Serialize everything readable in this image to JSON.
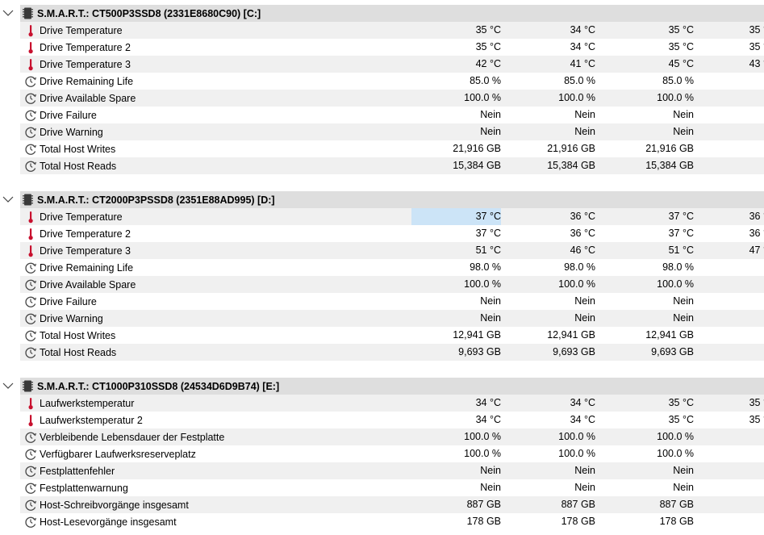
{
  "sections": [
    {
      "title": "S.M.A.R.T.: CT500P3SSD8 (2331E8680C90) [C:]",
      "rows": [
        {
          "icon": "thermometer-icon",
          "label": "Drive Temperature",
          "cur": "35 °C",
          "min": "34 °C",
          "max": "35 °C",
          "avg": "35 °C"
        },
        {
          "icon": "thermometer-icon",
          "label": "Drive Temperature 2",
          "cur": "35 °C",
          "min": "34 °C",
          "max": "35 °C",
          "avg": "35 °C"
        },
        {
          "icon": "thermometer-icon",
          "label": "Drive Temperature 3",
          "cur": "42 °C",
          "min": "41 °C",
          "max": "45 °C",
          "avg": "43 °C"
        },
        {
          "icon": "gauge-icon",
          "label": "Drive Remaining Life",
          "cur": "85.0 %",
          "min": "85.0 %",
          "max": "85.0 %",
          "avg": ""
        },
        {
          "icon": "gauge-icon",
          "label": "Drive Available Spare",
          "cur": "100.0 %",
          "min": "100.0 %",
          "max": "100.0 %",
          "avg": ""
        },
        {
          "icon": "gauge-icon",
          "label": "Drive Failure",
          "cur": "Nein",
          "min": "Nein",
          "max": "Nein",
          "avg": ""
        },
        {
          "icon": "gauge-icon",
          "label": "Drive Warning",
          "cur": "Nein",
          "min": "Nein",
          "max": "Nein",
          "avg": ""
        },
        {
          "icon": "gauge-icon",
          "label": "Total Host Writes",
          "cur": "21,916 GB",
          "min": "21,916 GB",
          "max": "21,916 GB",
          "avg": ""
        },
        {
          "icon": "gauge-icon",
          "label": "Total Host Reads",
          "cur": "15,384 GB",
          "min": "15,384 GB",
          "max": "15,384 GB",
          "avg": ""
        }
      ]
    },
    {
      "title": "S.M.A.R.T.: CT2000P3PSSD8 (2351E88AD995) [D:]",
      "rows": [
        {
          "icon": "thermometer-icon",
          "label": "Drive Temperature",
          "cur": "37 °C",
          "min": "36 °C",
          "max": "37 °C",
          "avg": "36 °C",
          "selected": true
        },
        {
          "icon": "thermometer-icon",
          "label": "Drive Temperature 2",
          "cur": "37 °C",
          "min": "36 °C",
          "max": "37 °C",
          "avg": "36 °C"
        },
        {
          "icon": "thermometer-icon",
          "label": "Drive Temperature 3",
          "cur": "51 °C",
          "min": "46 °C",
          "max": "51 °C",
          "avg": "47 °C"
        },
        {
          "icon": "gauge-icon",
          "label": "Drive Remaining Life",
          "cur": "98.0 %",
          "min": "98.0 %",
          "max": "98.0 %",
          "avg": ""
        },
        {
          "icon": "gauge-icon",
          "label": "Drive Available Spare",
          "cur": "100.0 %",
          "min": "100.0 %",
          "max": "100.0 %",
          "avg": ""
        },
        {
          "icon": "gauge-icon",
          "label": "Drive Failure",
          "cur": "Nein",
          "min": "Nein",
          "max": "Nein",
          "avg": ""
        },
        {
          "icon": "gauge-icon",
          "label": "Drive Warning",
          "cur": "Nein",
          "min": "Nein",
          "max": "Nein",
          "avg": ""
        },
        {
          "icon": "gauge-icon",
          "label": "Total Host Writes",
          "cur": "12,941 GB",
          "min": "12,941 GB",
          "max": "12,941 GB",
          "avg": ""
        },
        {
          "icon": "gauge-icon",
          "label": "Total Host Reads",
          "cur": "9,693 GB",
          "min": "9,693 GB",
          "max": "9,693 GB",
          "avg": ""
        }
      ]
    },
    {
      "title": "S.M.A.R.T.: CT1000P310SSD8 (24534D6D9B74) [E:]",
      "rows": [
        {
          "icon": "thermometer-icon",
          "label": "Laufwerkstemperatur",
          "cur": "34 °C",
          "min": "34 °C",
          "max": "35 °C",
          "avg": "35 °C"
        },
        {
          "icon": "thermometer-icon",
          "label": "Laufwerkstemperatur 2",
          "cur": "34 °C",
          "min": "34 °C",
          "max": "35 °C",
          "avg": "35 °C"
        },
        {
          "icon": "gauge-icon",
          "label": "Verbleibende Lebensdauer der Festplatte",
          "cur": "100.0 %",
          "min": "100.0 %",
          "max": "100.0 %",
          "avg": ""
        },
        {
          "icon": "gauge-icon",
          "label": "Verfügbarer Laufwerksreserveplatz",
          "cur": "100.0 %",
          "min": "100.0 %",
          "max": "100.0 %",
          "avg": ""
        },
        {
          "icon": "gauge-icon",
          "label": "Festplattenfehler",
          "cur": "Nein",
          "min": "Nein",
          "max": "Nein",
          "avg": ""
        },
        {
          "icon": "gauge-icon",
          "label": "Festplattenwarnung",
          "cur": "Nein",
          "min": "Nein",
          "max": "Nein",
          "avg": ""
        },
        {
          "icon": "gauge-icon",
          "label": "Host-Schreibvorgänge insgesamt",
          "cur": "887 GB",
          "min": "887 GB",
          "max": "887 GB",
          "avg": ""
        },
        {
          "icon": "gauge-icon",
          "label": "Host-Lesevorgänge insgesamt",
          "cur": "178 GB",
          "min": "178 GB",
          "max": "178 GB",
          "avg": ""
        }
      ]
    }
  ],
  "colors": {
    "header_bg": "#dedede",
    "row_alt": "#f0f0f0",
    "selection": "#cce4f7",
    "thermometer": "#c8102e"
  }
}
